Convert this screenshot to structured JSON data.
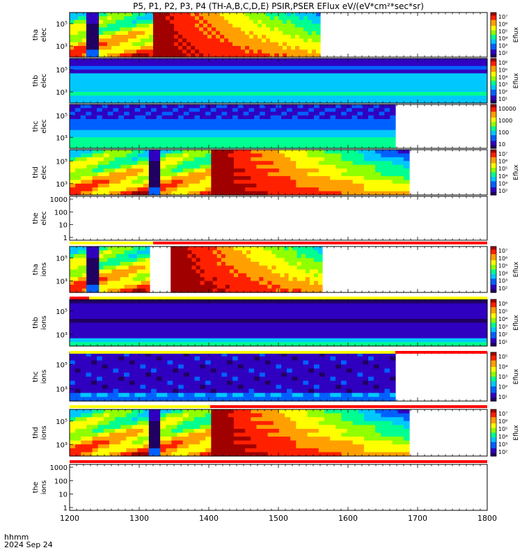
{
  "title": "P5, P1, P2, P3, P4 (TH-A,B,C,D,E) PSIR,PSER EFlux eV/(eV*cm²*sec*sr)",
  "footer": {
    "label": "hhmm",
    "date": "2024 Sep 24"
  },
  "chart_data": {
    "type": "heatmap",
    "title": "P5, P1, P2, P3, P4 (TH-A,B,C,D,E) PSIR,PSER EFlux eV/(eV*cm²*sec*sr)",
    "x_axis": {
      "label": "hhmm",
      "range": [
        1200,
        1800
      ],
      "ticks": [
        "1200",
        "1300",
        "1400",
        "1500",
        "1600",
        "1700",
        "1800"
      ]
    },
    "panels": [
      {
        "probe": "tha",
        "species": "elec",
        "ylabel": [
          "tha",
          "elec"
        ],
        "yticks": [
          "10⁵",
          "10³"
        ],
        "coverage": [
          1200,
          1560
        ],
        "colorbar": {
          "ticks": [
            "10⁷",
            "10⁶",
            "10⁵",
            "10⁴",
            "10³",
            "10²"
          ],
          "label": "Eflux"
        }
      },
      {
        "probe": "thb",
        "species": "elec",
        "ylabel": [
          "thb",
          "elec"
        ],
        "yticks": [
          "10⁵",
          "10³"
        ],
        "coverage": [
          1200,
          1800
        ],
        "colorbar": {
          "ticks": [
            "10⁶",
            "10⁵",
            "10⁴",
            "10³",
            "10²",
            "10¹"
          ],
          "label": "Eflux"
        }
      },
      {
        "probe": "thc",
        "species": "elec",
        "ylabel": [
          "thc",
          "elec"
        ],
        "yticks": [
          "10⁵",
          "10³"
        ],
        "coverage": [
          1200,
          1668
        ],
        "colorbar": {
          "ticks": [
            "10000",
            "1000",
            "100",
            "10"
          ],
          "label": ""
        }
      },
      {
        "probe": "thd",
        "species": "elec",
        "ylabel": [
          "thd",
          "elec"
        ],
        "yticks": [
          "10⁵",
          "10³"
        ],
        "coverage": [
          1200,
          1688
        ],
        "colorbar": {
          "ticks": [
            "10⁷",
            "10⁶",
            "10⁵",
            "10⁴",
            "10³",
            "10²"
          ],
          "label": "Eflux"
        }
      },
      {
        "probe": "the",
        "species": "elec",
        "ylabel": [
          "the",
          "elec"
        ],
        "yticks": [
          "1000",
          "100",
          "10",
          "1"
        ],
        "coverage": null,
        "colorbar": null
      },
      {
        "probe": "tha",
        "species": "ions",
        "ylabel": [
          "tha",
          "ions"
        ],
        "yticks": [
          "10⁵",
          "10³"
        ],
        "coverage": [
          1200,
          1563
        ],
        "colorbar": {
          "ticks": [
            "10⁷",
            "10⁶",
            "10⁵",
            "10⁴",
            "10³",
            "10²"
          ],
          "label": "Eflux"
        }
      },
      {
        "probe": "thb",
        "species": "ions",
        "ylabel": [
          "thb",
          "ions"
        ],
        "yticks": [
          "10⁵",
          "10³"
        ],
        "coverage": [
          1200,
          1800
        ],
        "colorbar": {
          "ticks": [
            "10⁶",
            "10⁵",
            "10⁴",
            "10³",
            "10²",
            "10¹"
          ],
          "label": "Eflux"
        }
      },
      {
        "probe": "thc",
        "species": "ions",
        "ylabel": [
          "thc",
          "ions"
        ],
        "yticks": [
          "10⁵",
          "10³"
        ],
        "coverage": [
          1200,
          1668
        ],
        "colorbar": {
          "ticks": [
            "10⁵",
            "10⁴",
            "10³",
            "10²",
            "10¹"
          ],
          "label": "Eflux"
        }
      },
      {
        "probe": "thd",
        "species": "ions",
        "ylabel": [
          "thd",
          "ions"
        ],
        "yticks": [
          "10⁵",
          "10³"
        ],
        "coverage": [
          1200,
          1688
        ],
        "colorbar": {
          "ticks": [
            "10⁷",
            "10⁶",
            "10⁵",
            "10⁴",
            "10³",
            "10²"
          ],
          "label": "Eflux"
        }
      },
      {
        "probe": "the",
        "species": "ions",
        "ylabel": [
          "the",
          "ions"
        ],
        "yticks": [
          "1000",
          "100",
          "10",
          "1"
        ],
        "coverage": null,
        "colorbar": null
      }
    ],
    "mode_bars": [
      {
        "segments": [
          {
            "from": 1200,
            "to": 1320,
            "color": "#ffff00"
          },
          {
            "from": 1320,
            "to": 1800,
            "color": "#ff0000"
          }
        ]
      },
      {
        "segments": [
          {
            "from": 1200,
            "to": 1228,
            "color": "#ff0000"
          },
          {
            "from": 1228,
            "to": 1800,
            "color": "#ffff00"
          }
        ]
      },
      {
        "segments": [
          {
            "from": 1200,
            "to": 1668,
            "color": "#ffff00"
          },
          {
            "from": 1668,
            "to": 1800,
            "color": "#ff0000"
          }
        ]
      },
      {
        "segments": [
          {
            "from": 1200,
            "to": 1402,
            "color": "#ffff00"
          },
          {
            "from": 1402,
            "to": 1800,
            "color": "#ff0000"
          }
        ]
      },
      {
        "segments": [
          {
            "from": 1200,
            "to": 1800,
            "color": "#ff0000"
          }
        ]
      }
    ],
    "colors": {
      "colormap": [
        "#200060",
        "#3000c0",
        "#0060ff",
        "#00c8ff",
        "#00ff90",
        "#90ff00",
        "#ffff00",
        "#ffa000",
        "#ff2000",
        "#a00000"
      ]
    }
  }
}
